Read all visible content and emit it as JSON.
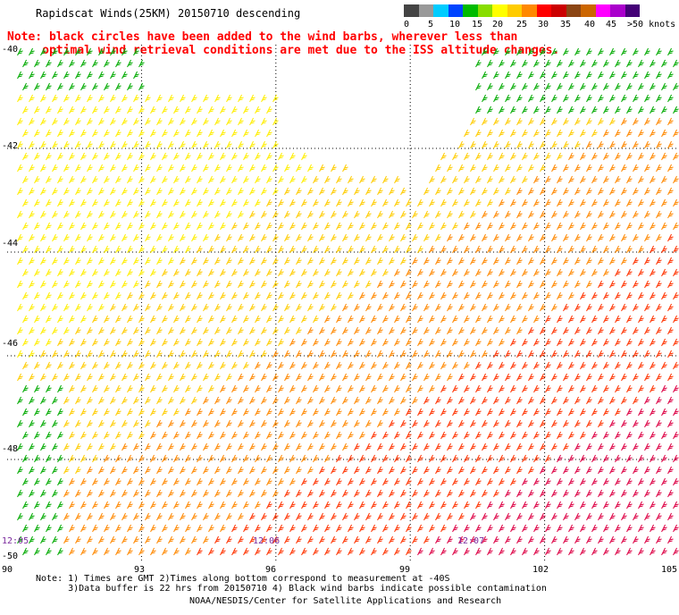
{
  "header": {
    "title": "Rapidscat Winds(25KM) 20150710 descending",
    "note": "Note: black circles have been added to the wind barbs, wherever less than\n     optimal wind retrieval conditions are met due to the ISS altitude changes."
  },
  "legend": {
    "unit": ">50 knots",
    "colors": [
      "#444444",
      "#999999",
      "#00ccff",
      "#0044ff",
      "#00bb00",
      "#88dd00",
      "#ffff00",
      "#ffcc00",
      "#ff8800",
      "#ff0000",
      "#cc0000",
      "#8b4513",
      "#cc6600",
      "#ff00ff",
      "#aa00cc",
      "#440077"
    ],
    "labels": [
      "0",
      "5",
      "10",
      "15",
      "20",
      "25",
      "30",
      "35",
      "40",
      "45",
      ">50 knots"
    ]
  },
  "axes": {
    "lat_labels": [
      "-40",
      "-42",
      "-44",
      "-46",
      "-48",
      "-50"
    ],
    "lon_labels": [
      "90",
      "93",
      "96",
      "99",
      "102",
      "105"
    ]
  },
  "time_labels": [
    "12:05",
    "12:06",
    "12:07"
  ],
  "footer": {
    "notes": "Note: 1) Times are GMT 2)Times along bottom correspond to measurement at -40S\n      3)Data buffer is 22 hrs from 20150710 4) Black wind barbs indicate possible contamination",
    "credit": "NOAA/NESDIS/Center for Satellite Applications and Research"
  },
  "map": {
    "lat_range": [
      -50,
      -40
    ],
    "lon_range": [
      90,
      105
    ],
    "grid_lats": [
      -42,
      -44,
      -46,
      -48
    ],
    "grid_lons": [
      93,
      96,
      99,
      102
    ]
  }
}
